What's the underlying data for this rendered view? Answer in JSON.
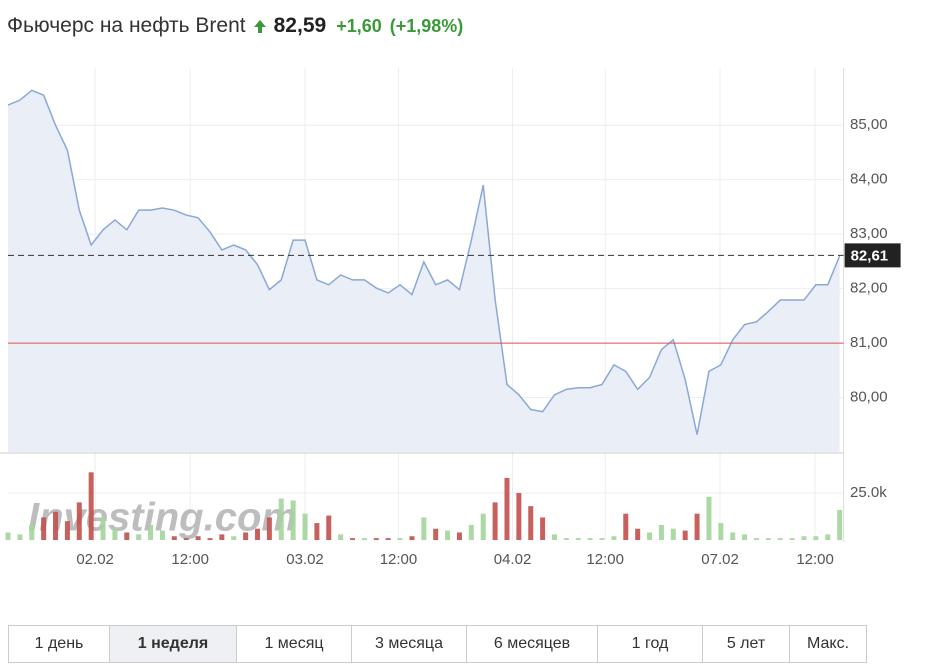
{
  "header": {
    "title": "Фьючерс на нефть Brent",
    "price": "82,59",
    "change": "+1,60",
    "change_pct": "(+1,98%)"
  },
  "watermark": "Investing.com",
  "chart_data": {
    "type": "line",
    "color": "#8aa8d6",
    "fill": "#e9eef7",
    "x": [
      -11,
      -9.5,
      -8,
      -6.5,
      -5,
      -3.5,
      -2,
      -0.5,
      1,
      2.5,
      4,
      5.5,
      7,
      8.5,
      10,
      11.5,
      13,
      14.5,
      16,
      17.5,
      19,
      20.5,
      22,
      23.5,
      25,
      26.5,
      28,
      29.5,
      31,
      32.5,
      34,
      35.5,
      37,
      38.5,
      40,
      41.5,
      43,
      44.5,
      46,
      47.5,
      49,
      50.5,
      52,
      53.5,
      55,
      56.5,
      58,
      59.5,
      61,
      62.5,
      64,
      65.5,
      67,
      68.5,
      70,
      71.5,
      73,
      74.5,
      76,
      77.5,
      79,
      80.5,
      82,
      83.5,
      85,
      86.5,
      88,
      89.5,
      91,
      92.5,
      94
    ],
    "values": [
      85.37,
      85.46,
      85.64,
      85.55,
      85.0,
      84.54,
      83.44,
      82.8,
      83.08,
      83.26,
      83.08,
      83.44,
      83.44,
      83.48,
      83.44,
      83.35,
      83.3,
      83.04,
      82.71,
      82.8,
      82.71,
      82.44,
      81.98,
      82.16,
      82.89,
      82.89,
      82.16,
      82.07,
      82.25,
      82.16,
      82.16,
      82.01,
      81.92,
      82.07,
      81.89,
      82.49,
      82.07,
      82.16,
      81.98,
      82.89,
      83.9,
      81.8,
      80.24,
      80.05,
      79.78,
      79.74,
      80.05,
      80.15,
      80.18,
      80.18,
      80.24,
      80.6,
      80.48,
      80.15,
      80.37,
      80.88,
      81.06,
      80.33,
      79.32,
      80.48,
      80.6,
      81.06,
      81.34,
      81.39,
      81.58,
      81.79,
      81.79,
      81.79,
      82.07,
      82.07,
      82.6
    ],
    "xlim": [
      -11,
      94.5
    ],
    "xticks": [
      {
        "value": 0,
        "label": "02.02"
      },
      {
        "value": 12,
        "label": "12:00"
      },
      {
        "value": 26.5,
        "label": "03.02"
      },
      {
        "value": 38.3,
        "label": "12:00"
      },
      {
        "value": 52.7,
        "label": "04.02"
      },
      {
        "value": 64.4,
        "label": "12:00"
      },
      {
        "value": 78.9,
        "label": "07.02"
      },
      {
        "value": 90.9,
        "label": "12:00"
      }
    ],
    "ylim": [
      79,
      86.05
    ],
    "yticks": [
      {
        "value": 80,
        "label": "80,00"
      },
      {
        "value": 81,
        "label": "81,00"
      },
      {
        "value": 82,
        "label": "82,00"
      },
      {
        "value": 83,
        "label": "83,00"
      },
      {
        "value": 84,
        "label": "84,00"
      },
      {
        "value": 85,
        "label": "85,00"
      }
    ],
    "grid": true,
    "current": {
      "value": 82.61,
      "label": "82,61"
    },
    "reference_line": {
      "value": 81,
      "color": "#d9534f"
    },
    "volume": {
      "up_color": "#a3d49b",
      "down_color": "#c0504d",
      "values": [
        4000,
        3000,
        8000,
        12000,
        15000,
        10000,
        20000,
        36000,
        12000,
        6000,
        4000,
        3000,
        8000,
        5000,
        2000,
        1000,
        2000,
        1000,
        3000,
        2000,
        4000,
        6000,
        12000,
        22000,
        21000,
        14000,
        9000,
        13000,
        3000,
        1000,
        1000,
        1000,
        1000,
        1000,
        2000,
        12000,
        6000,
        5000,
        4000,
        8000,
        14000,
        20000,
        33000,
        25000,
        18000,
        12000,
        3000,
        1000,
        1000,
        1000,
        1000,
        2000,
        14000,
        6000,
        4000,
        8000,
        6000,
        5000,
        14000,
        23000,
        9000,
        4000,
        3000,
        1000,
        1000,
        1000,
        1000,
        2000,
        2000,
        3000,
        16000
      ],
      "y2lim": [
        0,
        45200
      ],
      "y2ticks": [
        {
          "value": 25000,
          "label": "25.0k"
        }
      ]
    }
  },
  "periods": {
    "items": [
      "1 день",
      "1 неделя",
      "1 месяц",
      "3 месяца",
      "6 месяцев",
      "1 год",
      "5 лет",
      "Макс."
    ],
    "selected": 1
  }
}
